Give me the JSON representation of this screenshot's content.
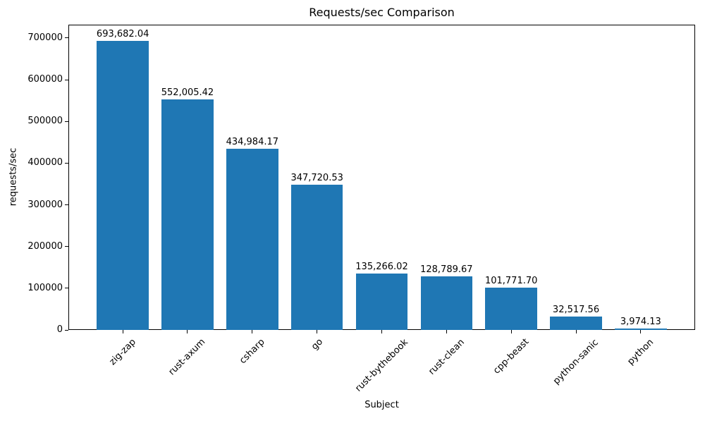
{
  "chart_data": {
    "type": "bar",
    "title": "Requests/sec Comparison",
    "xlabel": "Subject",
    "ylabel": "requests/sec",
    "categories": [
      "zig-zap",
      "rust-axum",
      "csharp",
      "go",
      "rust-bythebook",
      "rust-clean",
      "cpp-beast",
      "python-sanic",
      "python"
    ],
    "values": [
      693682.04,
      552005.42,
      434984.17,
      347720.53,
      135266.02,
      128789.67,
      101771.7,
      32517.56,
      3974.13
    ],
    "bar_value_labels": [
      "693,682.04",
      "552,005.42",
      "434,984.17",
      "347,720.53",
      "135,266.02",
      "128,789.67",
      "101,771.70",
      "32,517.56",
      "3,974.13"
    ],
    "y_ticks": [
      0,
      100000,
      200000,
      300000,
      400000,
      500000,
      600000,
      700000
    ],
    "y_tick_labels": [
      "0",
      "100000",
      "200000",
      "300000",
      "400000",
      "500000",
      "600000",
      "700000"
    ],
    "ylim": [
      0,
      732000
    ],
    "xlim_units": [
      -0.84,
      8.84
    ],
    "bar_width_units": 0.8,
    "bar_color": "#1f77b4",
    "grid": false,
    "legend": "none",
    "background_color": "#ffffff",
    "text_color": "#000000",
    "x_tick_label_rotation_deg": 45
  }
}
